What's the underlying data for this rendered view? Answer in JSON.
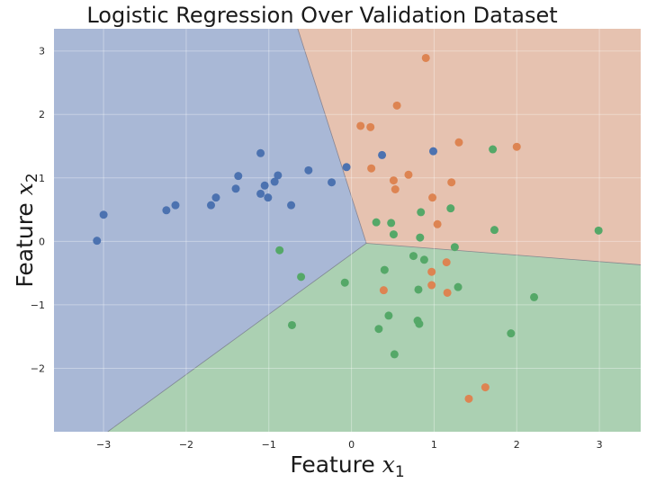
{
  "chart_data": {
    "type": "scatter",
    "title": "Logistic Regression Over Validation Dataset",
    "xlabel": {
      "prefix": "Feature ",
      "var": "x",
      "sub": "1"
    },
    "ylabel": {
      "prefix": "Feature ",
      "var": "x",
      "sub": "2"
    },
    "xlim": [
      -3.6,
      3.5
    ],
    "ylim": [
      -3.0,
      3.35
    ],
    "xticks": [
      -3,
      -2,
      -1,
      0,
      1,
      2,
      3
    ],
    "yticks": [
      -2,
      -1,
      0,
      1,
      2,
      3
    ],
    "grid": true,
    "regions": [
      {
        "class": "blue",
        "fill": "#a9b8d6"
      },
      {
        "class": "orange",
        "fill": "#e6c2b0"
      },
      {
        "class": "green",
        "fill": "#abd0b2"
      }
    ],
    "boundary_vertex": [
      0.18,
      -0.03
    ],
    "boundaries": [
      {
        "between": [
          "blue",
          "orange"
        ],
        "to": [
          -0.65,
          3.35
        ]
      },
      {
        "between": [
          "orange",
          "green"
        ],
        "to": [
          3.5,
          -0.37
        ]
      },
      {
        "between": [
          "blue",
          "green"
        ],
        "to": [
          -2.95,
          -3.0
        ]
      }
    ],
    "series": [
      {
        "class": "blue",
        "color": "#4c72b0",
        "points": [
          [
            -3.08,
            0.01
          ],
          [
            -3.0,
            0.42
          ],
          [
            -2.24,
            0.49
          ],
          [
            -2.13,
            0.57
          ],
          [
            -1.7,
            0.57
          ],
          [
            -1.64,
            0.69
          ],
          [
            -1.4,
            0.83
          ],
          [
            -1.37,
            1.03
          ],
          [
            -1.1,
            1.39
          ],
          [
            -1.1,
            0.75
          ],
          [
            -1.05,
            0.88
          ],
          [
            -1.01,
            0.69
          ],
          [
            -0.93,
            0.94
          ],
          [
            -0.89,
            1.04
          ],
          [
            -0.73,
            0.57
          ],
          [
            -0.52,
            1.12
          ],
          [
            -0.24,
            0.93
          ],
          [
            -0.06,
            1.17
          ],
          [
            0.37,
            1.36
          ],
          [
            0.99,
            1.42
          ]
        ]
      },
      {
        "class": "orange",
        "color": "#dd8452",
        "points": [
          [
            0.11,
            1.82
          ],
          [
            0.23,
            1.8
          ],
          [
            0.24,
            1.15
          ],
          [
            0.51,
            0.96
          ],
          [
            0.53,
            0.82
          ],
          [
            0.55,
            2.14
          ],
          [
            0.69,
            1.05
          ],
          [
            0.9,
            2.89
          ],
          [
            0.98,
            0.69
          ],
          [
            1.04,
            0.27
          ],
          [
            1.21,
            0.93
          ],
          [
            1.3,
            1.56
          ],
          [
            2.0,
            1.49
          ],
          [
            0.39,
            -0.77
          ],
          [
            0.97,
            -0.48
          ],
          [
            0.97,
            -0.69
          ],
          [
            1.15,
            -0.33
          ],
          [
            1.16,
            -0.81
          ],
          [
            1.42,
            -2.48
          ],
          [
            1.62,
            -2.3
          ]
        ]
      },
      {
        "class": "green",
        "color": "#55a868",
        "points": [
          [
            0.3,
            0.3
          ],
          [
            0.48,
            0.29
          ],
          [
            0.51,
            0.11
          ],
          [
            0.84,
            0.46
          ],
          [
            0.83,
            0.06
          ],
          [
            1.2,
            0.52
          ],
          [
            1.25,
            -0.09
          ],
          [
            1.71,
            1.45
          ],
          [
            1.73,
            0.18
          ],
          [
            2.99,
            0.17
          ],
          [
            -0.87,
            -0.14
          ],
          [
            -0.61,
            -0.56
          ],
          [
            -0.72,
            -1.32
          ],
          [
            -0.08,
            -0.65
          ],
          [
            0.4,
            -0.45
          ],
          [
            0.45,
            -1.17
          ],
          [
            0.33,
            -1.38
          ],
          [
            0.75,
            -0.23
          ],
          [
            0.81,
            -0.76
          ],
          [
            0.88,
            -0.29
          ],
          [
            0.8,
            -1.25
          ],
          [
            0.82,
            -1.3
          ],
          [
            0.52,
            -1.78
          ],
          [
            1.29,
            -0.72
          ],
          [
            1.93,
            -1.45
          ],
          [
            2.21,
            -0.88
          ]
        ]
      }
    ]
  }
}
